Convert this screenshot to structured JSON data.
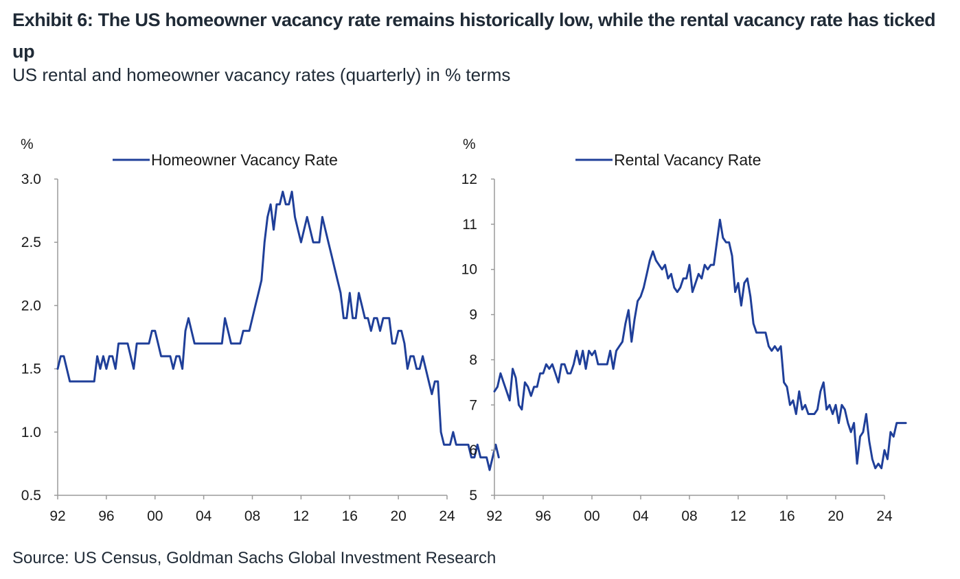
{
  "title": "Exhibit 6: The US homeowner vacancy rate remains historically low, while the rental vacancy rate has ticked up",
  "subtitle": "US rental and homeowner vacancy rates (quarterly) in % terms",
  "source": "Source: US Census, Goldman Sachs Global Investment Research",
  "colors": {
    "line": "#1f3f99",
    "axis": "#9a9a9a",
    "text": "#1f2a36"
  },
  "chart_data": [
    {
      "type": "line",
      "series_name": "Homeowner Vacancy Rate",
      "unit_label": "%",
      "ylim": [
        0.5,
        3.0
      ],
      "yticks": [
        0.5,
        1.0,
        1.5,
        2.0,
        2.5,
        3.0
      ],
      "ytick_labels": [
        "0.5",
        "1.0",
        "1.5",
        "2.0",
        "2.5",
        "3.0"
      ],
      "xlim": [
        1992,
        2024
      ],
      "xticks": [
        1992,
        1996,
        2000,
        2004,
        2008,
        2012,
        2016,
        2020,
        2024
      ],
      "xtick_labels": [
        "92",
        "96",
        "00",
        "04",
        "08",
        "12",
        "16",
        "20",
        "24"
      ],
      "x_start": 1992.0,
      "x_step": 0.25,
      "values": [
        1.5,
        1.6,
        1.6,
        1.5,
        1.4,
        1.4,
        1.4,
        1.4,
        1.4,
        1.4,
        1.4,
        1.4,
        1.4,
        1.6,
        1.5,
        1.6,
        1.5,
        1.6,
        1.6,
        1.5,
        1.7,
        1.7,
        1.7,
        1.7,
        1.6,
        1.5,
        1.7,
        1.7,
        1.7,
        1.7,
        1.7,
        1.8,
        1.8,
        1.7,
        1.6,
        1.6,
        1.6,
        1.6,
        1.5,
        1.6,
        1.6,
        1.5,
        1.8,
        1.9,
        1.8,
        1.7,
        1.7,
        1.7,
        1.7,
        1.7,
        1.7,
        1.7,
        1.7,
        1.7,
        1.7,
        1.9,
        1.8,
        1.7,
        1.7,
        1.7,
        1.7,
        1.8,
        1.8,
        1.8,
        1.9,
        2.0,
        2.1,
        2.2,
        2.5,
        2.7,
        2.8,
        2.6,
        2.8,
        2.8,
        2.9,
        2.8,
        2.8,
        2.9,
        2.7,
        2.6,
        2.5,
        2.6,
        2.7,
        2.6,
        2.5,
        2.5,
        2.5,
        2.7,
        2.6,
        2.5,
        2.4,
        2.3,
        2.2,
        2.1,
        1.9,
        1.9,
        2.1,
        1.9,
        1.9,
        2.1,
        2.0,
        1.9,
        1.9,
        1.8,
        1.9,
        1.9,
        1.8,
        1.9,
        1.9,
        1.9,
        1.7,
        1.7,
        1.8,
        1.8,
        1.7,
        1.5,
        1.6,
        1.6,
        1.5,
        1.5,
        1.6,
        1.5,
        1.4,
        1.3,
        1.4,
        1.4,
        1.0,
        0.9,
        0.9,
        0.9,
        1.0,
        0.9,
        0.9,
        0.9,
        0.9,
        0.9,
        0.8,
        0.8,
        0.9,
        0.8,
        0.8,
        0.8,
        0.7,
        0.8,
        0.9,
        0.8
      ]
    },
    {
      "type": "line",
      "series_name": "Rental Vacancy Rate",
      "unit_label": "%",
      "ylim": [
        5,
        12
      ],
      "yticks": [
        5,
        6,
        7,
        8,
        9,
        10,
        11,
        12
      ],
      "ytick_labels": [
        "5",
        "6",
        "7",
        "8",
        "9",
        "10",
        "11",
        "12"
      ],
      "xlim": [
        1992,
        2024
      ],
      "xticks": [
        1992,
        1996,
        2000,
        2004,
        2008,
        2012,
        2016,
        2020,
        2024
      ],
      "xtick_labels": [
        "92",
        "96",
        "00",
        "04",
        "08",
        "12",
        "16",
        "20",
        "24"
      ],
      "x_start": 1992.0,
      "x_step": 0.25,
      "values": [
        7.3,
        7.4,
        7.7,
        7.5,
        7.3,
        7.1,
        7.8,
        7.6,
        7.0,
        6.9,
        7.5,
        7.4,
        7.2,
        7.4,
        7.4,
        7.7,
        7.7,
        7.9,
        7.8,
        7.9,
        7.7,
        7.5,
        7.9,
        7.9,
        7.7,
        7.7,
        7.9,
        8.2,
        7.9,
        8.2,
        7.8,
        8.2,
        8.1,
        8.2,
        7.9,
        7.9,
        7.9,
        7.9,
        8.2,
        7.8,
        8.2,
        8.3,
        8.4,
        8.8,
        9.1,
        8.4,
        8.9,
        9.3,
        9.4,
        9.6,
        9.9,
        10.2,
        10.4,
        10.2,
        10.1,
        10.0,
        10.1,
        9.8,
        9.9,
        9.6,
        9.5,
        9.6,
        9.8,
        9.8,
        10.1,
        9.5,
        9.7,
        9.9,
        9.8,
        10.1,
        10.0,
        10.1,
        10.1,
        10.6,
        11.1,
        10.7,
        10.6,
        10.6,
        10.3,
        9.5,
        9.7,
        9.2,
        9.7,
        9.8,
        9.4,
        8.8,
        8.6,
        8.6,
        8.6,
        8.6,
        8.3,
        8.2,
        8.3,
        8.2,
        8.3,
        7.5,
        7.4,
        7.0,
        7.1,
        6.8,
        7.3,
        6.9,
        7.0,
        6.8,
        6.8,
        6.8,
        6.9,
        7.3,
        7.5,
        6.9,
        7.0,
        6.8,
        7.0,
        6.6,
        7.0,
        6.9,
        6.6,
        6.4,
        6.6,
        5.7,
        6.3,
        6.4,
        6.8,
        6.2,
        5.8,
        5.6,
        5.7,
        5.6,
        6.0,
        5.8,
        6.4,
        6.3,
        6.6,
        6.6,
        6.6,
        6.6
      ]
    }
  ]
}
